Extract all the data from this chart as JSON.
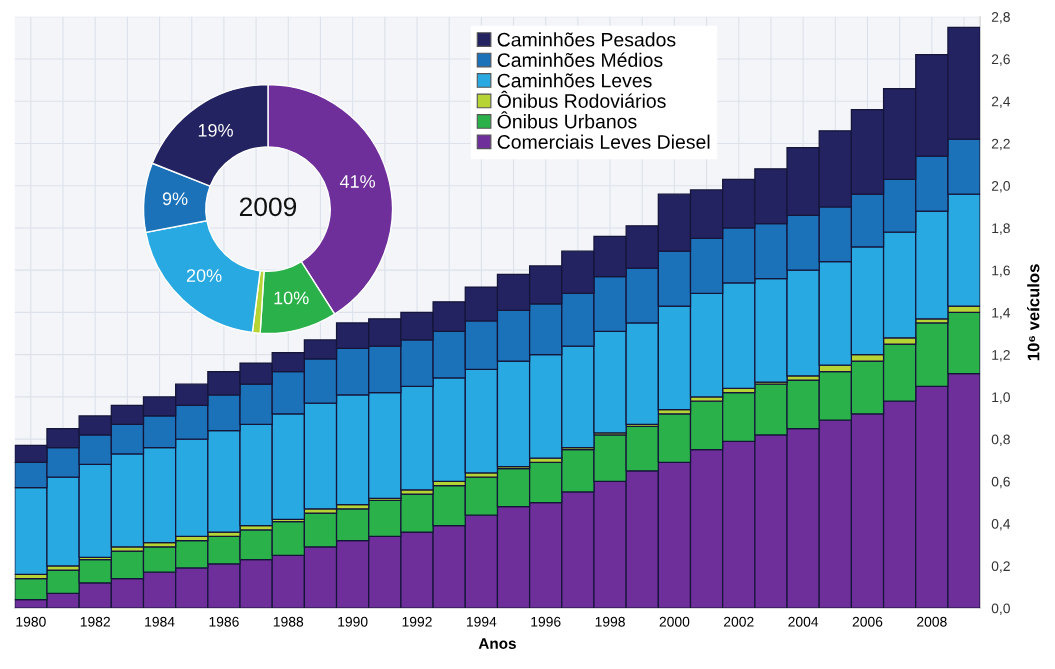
{
  "chart_data": [
    {
      "type": "bar",
      "stacked": true,
      "xlabel": "Anos",
      "ylabel": "10⁶ veículos",
      "categories": [
        "1980",
        null,
        "1982",
        null,
        "1984",
        null,
        "1986",
        null,
        "1988",
        null,
        "1990",
        null,
        "1992",
        null,
        "1994",
        null,
        "1996",
        null,
        "1998",
        null,
        "2000",
        null,
        "2002",
        null,
        "2004",
        null,
        "2006",
        null,
        "2008",
        null
      ],
      "series": [
        {
          "name": "Comerciais Leves Diesel",
          "color": "#6f2f9a",
          "values": [
            0.04,
            0.07,
            0.12,
            0.14,
            0.17,
            0.19,
            0.21,
            0.23,
            0.25,
            0.29,
            0.32,
            0.34,
            0.36,
            0.39,
            0.44,
            0.48,
            0.5,
            0.55,
            0.6,
            0.65,
            0.69,
            0.75,
            0.79,
            0.82,
            0.85,
            0.89,
            0.92,
            0.98,
            1.05,
            1.11
          ]
        },
        {
          "name": "Ônibus Urbanos",
          "color": "#2bb14a",
          "values": [
            0.1,
            0.11,
            0.11,
            0.13,
            0.12,
            0.13,
            0.13,
            0.14,
            0.16,
            0.16,
            0.15,
            0.17,
            0.18,
            0.19,
            0.18,
            0.18,
            0.19,
            0.2,
            0.22,
            0.21,
            0.23,
            0.23,
            0.23,
            0.24,
            0.23,
            0.23,
            0.25,
            0.27,
            0.3,
            0.29
          ]
        },
        {
          "name": "Ônibus Rodoviários",
          "color": "#b6d433",
          "values": [
            0.02,
            0.02,
            0.01,
            0.02,
            0.02,
            0.02,
            0.02,
            0.02,
            0.01,
            0.02,
            0.02,
            0.01,
            0.02,
            0.02,
            0.02,
            0.01,
            0.02,
            0.01,
            0.01,
            0.01,
            0.02,
            0.02,
            0.02,
            0.01,
            0.02,
            0.03,
            0.03,
            0.03,
            0.02,
            0.03
          ]
        },
        {
          "name": "Caminhões Leves",
          "color": "#29a9e1",
          "values": [
            0.41,
            0.42,
            0.44,
            0.44,
            0.45,
            0.46,
            0.48,
            0.48,
            0.5,
            0.5,
            0.52,
            0.5,
            0.49,
            0.49,
            0.49,
            0.5,
            0.49,
            0.48,
            0.48,
            0.48,
            0.49,
            0.49,
            0.5,
            0.49,
            0.5,
            0.49,
            0.51,
            0.5,
            0.51,
            0.53
          ]
        },
        {
          "name": "Caminhões Médios",
          "color": "#1b72b9",
          "values": [
            0.12,
            0.14,
            0.14,
            0.14,
            0.15,
            0.16,
            0.17,
            0.19,
            0.2,
            0.21,
            0.22,
            0.22,
            0.22,
            0.22,
            0.23,
            0.24,
            0.24,
            0.25,
            0.26,
            0.26,
            0.26,
            0.26,
            0.26,
            0.26,
            0.26,
            0.26,
            0.25,
            0.25,
            0.26,
            0.26
          ]
        },
        {
          "name": "Caminhões Pesados",
          "color": "#232361",
          "values": [
            0.08,
            0.09,
            0.09,
            0.09,
            0.09,
            0.1,
            0.11,
            0.1,
            0.09,
            0.09,
            0.12,
            0.13,
            0.13,
            0.14,
            0.16,
            0.17,
            0.18,
            0.2,
            0.19,
            0.2,
            0.27,
            0.23,
            0.23,
            0.26,
            0.32,
            0.36,
            0.4,
            0.43,
            0.48,
            0.53
          ]
        }
      ],
      "ylim": [
        0,
        2.8
      ],
      "yticks": [
        {
          "value": 0,
          "label": "0,0"
        },
        {
          "value": 0.2,
          "label": "0,2"
        },
        {
          "value": 0.4,
          "label": "0,4"
        },
        {
          "value": 0.6,
          "label": "0,6"
        },
        {
          "value": 0.8,
          "label": "0,8"
        },
        {
          "value": 1.0,
          "label": "1,0"
        },
        {
          "value": 1.2,
          "label": "1,2"
        },
        {
          "value": 1.4,
          "label": "1,4"
        },
        {
          "value": 1.6,
          "label": "1,6"
        },
        {
          "value": 1.8,
          "label": "1,8"
        },
        {
          "value": 2.0,
          "label": "2,0"
        },
        {
          "value": 2.2,
          "label": "2,2"
        },
        {
          "value": 2.4,
          "label": "2,4"
        },
        {
          "value": 2.6,
          "label": "2,6"
        },
        {
          "value": 2.8,
          "label": "2,8"
        }
      ],
      "grid": true,
      "legend": "top"
    },
    {
      "type": "donut",
      "annotations": [
        "2009"
      ],
      "categories": [
        null,
        null,
        null,
        null,
        null,
        null
      ],
      "values": [
        41,
        10,
        1,
        20,
        9,
        19
      ],
      "colors": [
        "#6f2f9a",
        "#2bb14a",
        "#b6d433",
        "#29a9e1",
        "#1b72b9",
        "#232361"
      ],
      "value_labels": [
        "41%",
        "10%",
        null,
        "20%",
        "9%",
        "19%"
      ]
    }
  ]
}
